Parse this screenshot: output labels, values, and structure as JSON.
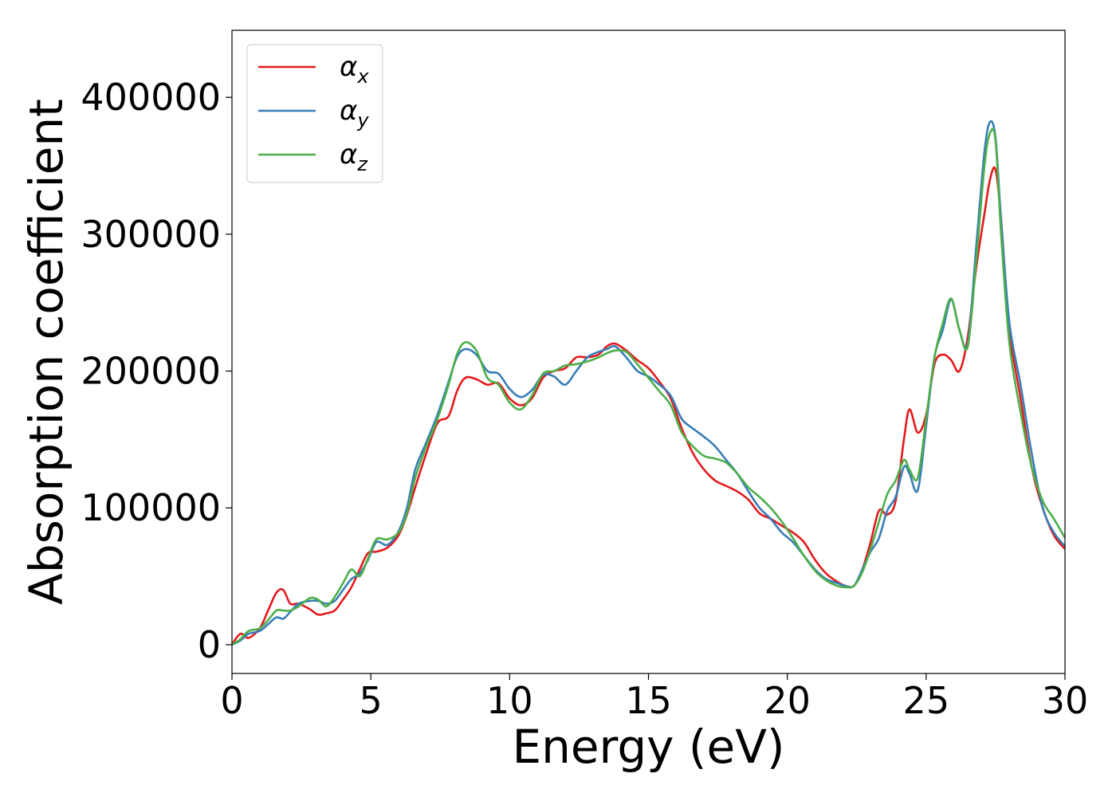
{
  "chart_data": {
    "type": "line",
    "xlabel": "Energy (eV)",
    "ylabel": "Absorption coefficient",
    "xlim": [
      0,
      30
    ],
    "ylim": [
      -21000,
      449000
    ],
    "xticks": [
      0,
      5,
      10,
      15,
      20,
      25,
      30
    ],
    "xtick_labels": [
      "0",
      "5",
      "10",
      "15",
      "20",
      "25",
      "30"
    ],
    "yticks": [
      0,
      100000,
      200000,
      300000,
      400000
    ],
    "ytick_labels": [
      "0",
      "100000",
      "200000",
      "300000",
      "400000"
    ],
    "grid": false,
    "legend_position": "top-left",
    "series": [
      {
        "name": "αx",
        "legend_symbol": "α",
        "legend_subscript": "x",
        "color": "#e41a1c",
        "x": [
          0,
          0.3,
          0.6,
          1.0,
          1.3,
          1.6,
          1.85,
          2.1,
          2.4,
          2.8,
          3.1,
          3.4,
          3.7,
          4.0,
          4.3,
          4.6,
          4.9,
          5.2,
          5.6,
          6.0,
          6.3,
          6.6,
          7.0,
          7.4,
          7.8,
          8.1,
          8.4,
          8.8,
          9.2,
          9.6,
          10.0,
          10.4,
          10.8,
          11.2,
          11.6,
          12.0,
          12.4,
          12.8,
          13.2,
          13.5,
          13.8,
          14.2,
          14.6,
          15.0,
          15.4,
          15.8,
          16.2,
          16.6,
          17.0,
          17.4,
          17.8,
          18.2,
          18.6,
          19.0,
          19.4,
          19.8,
          20.2,
          20.6,
          21.0,
          21.4,
          21.8,
          22.1,
          22.4,
          22.7,
          23.0,
          23.3,
          23.6,
          23.9,
          24.2,
          24.4,
          24.7,
          25.0,
          25.3,
          25.6,
          25.9,
          26.2,
          26.5,
          26.8,
          27.1,
          27.3,
          27.5,
          27.7,
          28.0,
          28.4,
          28.8,
          29.2,
          29.6,
          30.0
        ],
        "y": [
          0,
          8000,
          5000,
          12000,
          25000,
          38000,
          40000,
          30000,
          30000,
          26000,
          22000,
          23000,
          25000,
          33000,
          42000,
          55000,
          67000,
          68000,
          71000,
          80000,
          95000,
          115000,
          140000,
          162000,
          167000,
          185000,
          195000,
          194000,
          190000,
          191000,
          180000,
          175000,
          180000,
          195000,
          200000,
          202000,
          210000,
          210000,
          212000,
          218000,
          220000,
          215000,
          208000,
          202000,
          192000,
          180000,
          158000,
          140000,
          128000,
          120000,
          116000,
          112000,
          106000,
          96000,
          92000,
          87000,
          82000,
          75000,
          62000,
          52000,
          46000,
          43000,
          43000,
          55000,
          75000,
          98000,
          95000,
          105000,
          150000,
          172000,
          155000,
          168000,
          205000,
          212000,
          208000,
          200000,
          225000,
          275000,
          315000,
          340000,
          347000,
          310000,
          230000,
          180000,
          130000,
          100000,
          80000,
          70000
        ]
      },
      {
        "name": "αy",
        "legend_symbol": "α",
        "legend_subscript": "y",
        "color": "#377eb8",
        "x": [
          0,
          0.3,
          0.6,
          1.0,
          1.3,
          1.6,
          1.85,
          2.1,
          2.4,
          2.8,
          3.1,
          3.4,
          3.7,
          4.0,
          4.3,
          4.6,
          4.9,
          5.2,
          5.6,
          6.0,
          6.3,
          6.6,
          7.0,
          7.4,
          7.8,
          8.1,
          8.4,
          8.8,
          9.2,
          9.6,
          10.0,
          10.4,
          10.8,
          11.2,
          11.6,
          12.0,
          12.4,
          12.8,
          13.2,
          13.5,
          13.8,
          14.2,
          14.6,
          15.0,
          15.4,
          15.8,
          16.2,
          16.6,
          17.0,
          17.4,
          17.8,
          18.2,
          18.6,
          19.0,
          19.4,
          19.8,
          20.2,
          20.6,
          21.0,
          21.4,
          21.8,
          22.1,
          22.4,
          22.7,
          23.0,
          23.3,
          23.6,
          23.9,
          24.2,
          24.4,
          24.7,
          25.0,
          25.3,
          25.6,
          25.9,
          26.2,
          26.5,
          26.8,
          27.1,
          27.3,
          27.5,
          27.7,
          28.0,
          28.4,
          28.8,
          29.2,
          29.6,
          30.0
        ],
        "y": [
          0,
          3000,
          8000,
          10000,
          15000,
          20000,
          19000,
          24000,
          30000,
          32000,
          32000,
          30000,
          32000,
          40000,
          48000,
          52000,
          62000,
          75000,
          73000,
          83000,
          100000,
          128000,
          148000,
          168000,
          192000,
          210000,
          216000,
          212000,
          200000,
          198000,
          187000,
          181000,
          186000,
          197000,
          196000,
          190000,
          200000,
          210000,
          214000,
          216000,
          218000,
          210000,
          200000,
          196000,
          190000,
          182000,
          165000,
          158000,
          152000,
          145000,
          135000,
          125000,
          112000,
          100000,
          92000,
          82000,
          75000,
          65000,
          55000,
          48000,
          45000,
          43000,
          43000,
          55000,
          68000,
          78000,
          98000,
          108000,
          130000,
          125000,
          113000,
          160000,
          210000,
          230000,
          252000,
          230000,
          220000,
          290000,
          360000,
          382000,
          370000,
          310000,
          235000,
          190000,
          140000,
          100000,
          82000,
          72000
        ]
      },
      {
        "name": "αz",
        "legend_symbol": "α",
        "legend_subscript": "z",
        "color": "#4daf4a",
        "x": [
          0,
          0.3,
          0.6,
          1.0,
          1.3,
          1.6,
          1.85,
          2.1,
          2.4,
          2.8,
          3.1,
          3.4,
          3.7,
          4.0,
          4.3,
          4.6,
          4.9,
          5.2,
          5.6,
          6.0,
          6.3,
          6.6,
          7.0,
          7.4,
          7.8,
          8.1,
          8.4,
          8.8,
          9.2,
          9.6,
          10.0,
          10.4,
          10.8,
          11.2,
          11.6,
          12.0,
          12.4,
          12.8,
          13.2,
          13.5,
          13.8,
          14.2,
          14.6,
          15.0,
          15.4,
          15.8,
          16.2,
          16.6,
          17.0,
          17.4,
          17.8,
          18.2,
          18.6,
          19.0,
          19.4,
          19.8,
          20.2,
          20.6,
          21.0,
          21.4,
          21.8,
          22.1,
          22.4,
          22.7,
          23.0,
          23.3,
          23.6,
          23.9,
          24.2,
          24.4,
          24.7,
          25.0,
          25.3,
          25.6,
          25.9,
          26.2,
          26.5,
          26.8,
          27.1,
          27.3,
          27.5,
          27.7,
          28.0,
          28.4,
          28.8,
          29.2,
          29.6,
          30.0
        ],
        "y": [
          0,
          4000,
          10000,
          12000,
          18000,
          25000,
          25000,
          25000,
          28000,
          34000,
          33000,
          28000,
          35000,
          45000,
          55000,
          50000,
          63000,
          77000,
          77000,
          82000,
          96000,
          122000,
          145000,
          165000,
          190000,
          212000,
          221000,
          215000,
          195000,
          190000,
          177000,
          172000,
          182000,
          198000,
          200000,
          204000,
          205000,
          207000,
          210000,
          213000,
          215000,
          214000,
          205000,
          195000,
          185000,
          175000,
          155000,
          145000,
          138000,
          136000,
          133000,
          125000,
          115000,
          108000,
          100000,
          90000,
          78000,
          65000,
          54000,
          47000,
          43000,
          42000,
          43000,
          53000,
          70000,
          90000,
          110000,
          120000,
          135000,
          128000,
          122000,
          165000,
          210000,
          235000,
          253000,
          230000,
          218000,
          280000,
          350000,
          374000,
          368000,
          300000,
          220000,
          170000,
          130000,
          105000,
          92000,
          78000
        ]
      }
    ]
  }
}
